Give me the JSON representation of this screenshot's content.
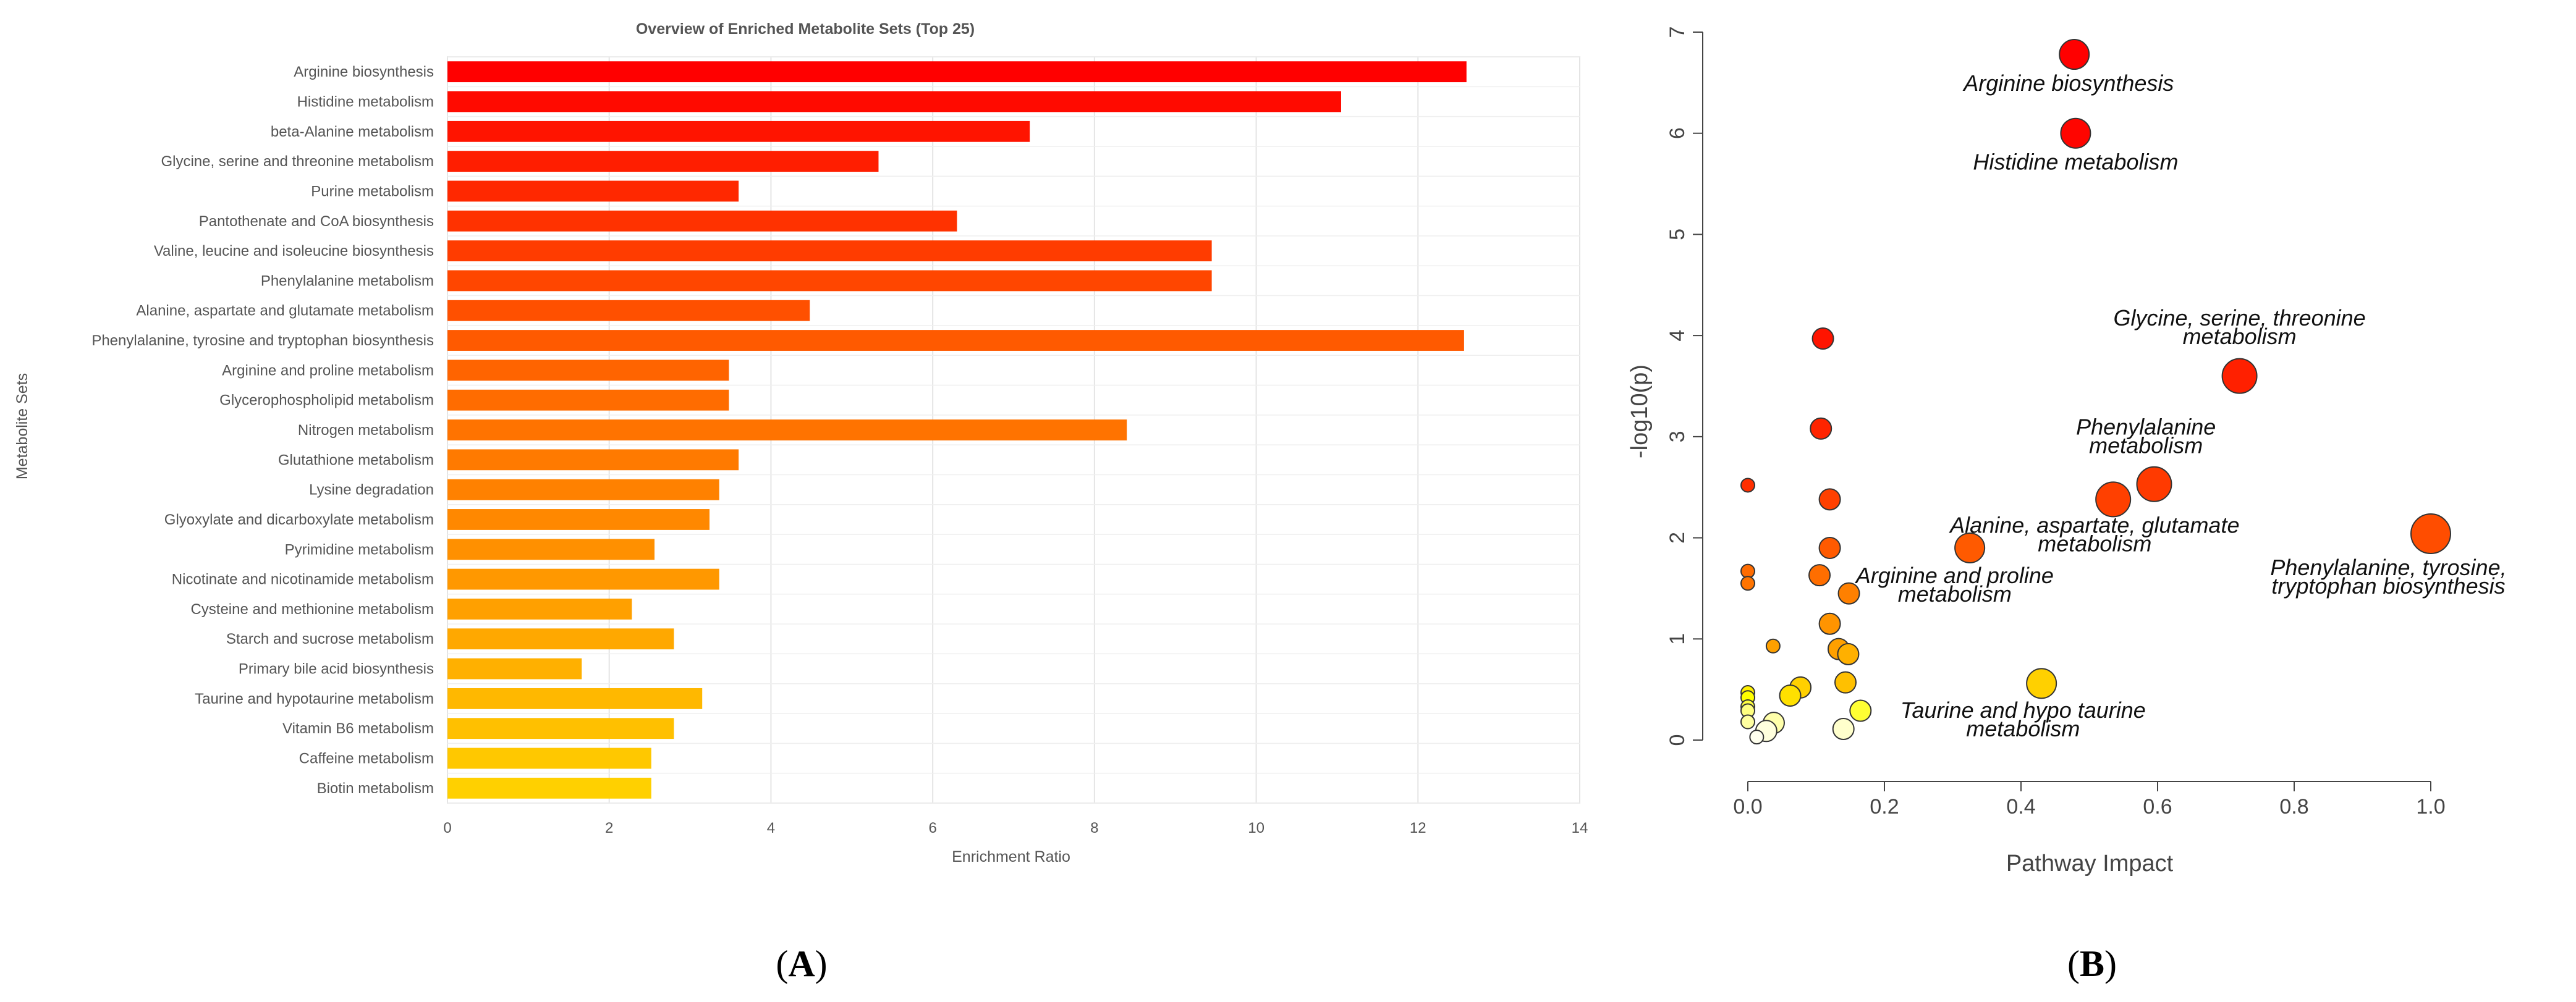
{
  "panel_labels": {
    "a": "(A)",
    "b": "(B)"
  },
  "colors": {
    "grid": "#e4e4e4",
    "axis_text": "#555555",
    "bubble_outline": "#333333"
  },
  "chart_data": [
    {
      "type": "bar",
      "orientation": "horizontal",
      "title": "Overview of Enriched Metabolite Sets (Top 25)",
      "xlabel": "Enrichment Ratio",
      "ylabel": "Metabolite Sets",
      "xlim": [
        0,
        14
      ],
      "xticks": [
        "0",
        "2",
        "4",
        "6",
        "8",
        "10",
        "12",
        "14"
      ],
      "grid": true,
      "categories": [
        "Arginine biosynthesis",
        "Histidine metabolism",
        "beta-Alanine metabolism",
        "Glycine, serine and threonine metabolism",
        "Purine metabolism",
        "Pantothenate and CoA biosynthesis",
        "Valine, leucine and isoleucine biosynthesis",
        "Phenylalanine metabolism",
        "Alanine, aspartate and glutamate metabolism",
        "Phenylalanine, tyrosine and tryptophan biosynthesis",
        "Arginine and proline metabolism",
        "Glycerophospholipid metabolism",
        "Nitrogen metabolism",
        "Glutathione metabolism",
        "Lysine degradation",
        "Glyoxylate and dicarboxylate metabolism",
        "Pyrimidine metabolism",
        "Nicotinate and nicotinamide metabolism",
        "Cysteine and methionine metabolism",
        "Starch and sucrose metabolism",
        "Primary bile acid biosynthesis",
        "Taurine and hypotaurine metabolism",
        "Vitamin B6 metabolism",
        "Caffeine metabolism",
        "Biotin metabolism"
      ],
      "values": [
        12.6,
        11.05,
        7.2,
        5.33,
        3.6,
        6.3,
        9.45,
        9.45,
        4.48,
        12.57,
        3.48,
        3.48,
        8.4,
        3.6,
        3.36,
        3.24,
        2.56,
        3.36,
        2.28,
        2.8,
        1.66,
        3.15,
        2.8,
        2.52,
        2.52
      ],
      "colors": [
        "#ff0000",
        "#ff0a00",
        "#ff1400",
        "#ff1e00",
        "#ff2800",
        "#ff3200",
        "#ff3c00",
        "#ff4600",
        "#ff5000",
        "#ff5a00",
        "#ff6400",
        "#ff6c00",
        "#ff7300",
        "#ff7a00",
        "#ff8100",
        "#ff8800",
        "#ff9000",
        "#ff9800",
        "#ffa000",
        "#ffa800",
        "#ffb000",
        "#ffb800",
        "#ffc000",
        "#ffc800",
        "#ffd000"
      ]
    },
    {
      "type": "scatter",
      "subtype": "bubble",
      "title": "",
      "xlabel": "Pathway Impact",
      "ylabel": "-log10(p)",
      "xlim": [
        0,
        1
      ],
      "ylim": [
        0,
        7
      ],
      "xticks": [
        "0.0",
        "0.2",
        "0.4",
        "0.6",
        "0.8",
        "1.0"
      ],
      "yticks": [
        "0",
        "1",
        "2",
        "3",
        "4",
        "5",
        "6",
        "7"
      ],
      "grid": false,
      "points": [
        {
          "x": 0.478,
          "y": 6.78,
          "size": 3,
          "color": "#ff0000"
        },
        {
          "x": 0.48,
          "y": 6.0,
          "size": 3,
          "color": "#ff0500"
        },
        {
          "x": 0.11,
          "y": 3.97,
          "size": 2,
          "color": "#ff1400"
        },
        {
          "x": 0.72,
          "y": 3.6,
          "size": 4,
          "color": "#ff2000"
        },
        {
          "x": 0.107,
          "y": 3.08,
          "size": 2,
          "color": "#ff2400"
        },
        {
          "x": 0.0,
          "y": 2.52,
          "size": 1,
          "color": "#ff2f00"
        },
        {
          "x": 0.595,
          "y": 2.53,
          "size": 4,
          "color": "#ff3a00"
        },
        {
          "x": 0.535,
          "y": 2.38,
          "size": 4,
          "color": "#ff4000"
        },
        {
          "x": 0.12,
          "y": 2.38,
          "size": 2,
          "color": "#ff4000"
        },
        {
          "x": 1.0,
          "y": 2.04,
          "size": 5,
          "color": "#ff4d00"
        },
        {
          "x": 0.325,
          "y": 1.9,
          "size": 3,
          "color": "#ff5a00"
        },
        {
          "x": 0.12,
          "y": 1.9,
          "size": 2,
          "color": "#ff5a00"
        },
        {
          "x": 0.0,
          "y": 1.67,
          "size": 1,
          "color": "#ff6c00"
        },
        {
          "x": 0.105,
          "y": 1.63,
          "size": 2,
          "color": "#ff6e00"
        },
        {
          "x": 0.0,
          "y": 1.55,
          "size": 1,
          "color": "#ff7400"
        },
        {
          "x": 0.148,
          "y": 1.45,
          "size": 2,
          "color": "#ff8000"
        },
        {
          "x": 0.12,
          "y": 1.15,
          "size": 2,
          "color": "#ff9400"
        },
        {
          "x": 0.037,
          "y": 0.93,
          "size": 1,
          "color": "#ffa000"
        },
        {
          "x": 0.133,
          "y": 0.9,
          "size": 2,
          "color": "#ffa000"
        },
        {
          "x": 0.147,
          "y": 0.85,
          "size": 2,
          "color": "#ffb000"
        },
        {
          "x": 0.43,
          "y": 0.56,
          "size": 3,
          "color": "#ffd000"
        },
        {
          "x": 0.143,
          "y": 0.57,
          "size": 2,
          "color": "#ffc000"
        },
        {
          "x": 0.077,
          "y": 0.52,
          "size": 2,
          "color": "#ffd000"
        },
        {
          "x": 0.062,
          "y": 0.44,
          "size": 2,
          "color": "#ffe000"
        },
        {
          "x": 0.0,
          "y": 0.47,
          "size": 1,
          "color": "#fff000"
        },
        {
          "x": 0.0,
          "y": 0.42,
          "size": 1,
          "color": "#ffff00"
        },
        {
          "x": 0.0,
          "y": 0.33,
          "size": 1,
          "color": "#ffff40"
        },
        {
          "x": 0.0,
          "y": 0.29,
          "size": 1,
          "color": "#ffff80"
        },
        {
          "x": 0.165,
          "y": 0.29,
          "size": 2,
          "color": "#ffff33"
        },
        {
          "x": 0.0,
          "y": 0.18,
          "size": 1,
          "color": "#ffffa0"
        },
        {
          "x": 0.038,
          "y": 0.17,
          "size": 2,
          "color": "#ffffaa"
        },
        {
          "x": 0.14,
          "y": 0.11,
          "size": 2,
          "color": "#ffffcc"
        },
        {
          "x": 0.027,
          "y": 0.09,
          "size": 2,
          "color": "#ffffdd"
        },
        {
          "x": 0.013,
          "y": 0.03,
          "size": 1,
          "color": "#ffffee"
        }
      ],
      "annotations": [
        {
          "lines": [
            "Arginine biosynthesis"
          ],
          "x": 0.47,
          "y": 6.42,
          "anchor": "middle"
        },
        {
          "lines": [
            "Histidine metabolism"
          ],
          "x": 0.48,
          "y": 5.64,
          "anchor": "middle"
        },
        {
          "lines": [
            "Glycine, serine, threonine",
            "metabolism"
          ],
          "x": 0.72,
          "y": 4.1,
          "anchor": "middle"
        },
        {
          "lines": [
            "Phenylalanine",
            "metabolism"
          ],
          "x": 0.583,
          "y": 3.02,
          "anchor": "middle"
        },
        {
          "lines": [
            "Alanine, aspartate, glutamate",
            "metabolism"
          ],
          "x": 0.508,
          "y": 2.05,
          "anchor": "middle"
        },
        {
          "lines": [
            "Arginine and proline",
            "metabolism"
          ],
          "x": 0.303,
          "y": 1.55,
          "anchor": "middle"
        },
        {
          "lines": [
            "Phenylalanine, tyrosine,",
            "tryptophan biosynthesis"
          ],
          "x": 0.938,
          "y": 1.63,
          "anchor": "middle"
        },
        {
          "lines": [
            "Taurine and hypo taurine",
            "metabolism"
          ],
          "x": 0.403,
          "y": 0.22,
          "anchor": "middle"
        }
      ]
    }
  ]
}
